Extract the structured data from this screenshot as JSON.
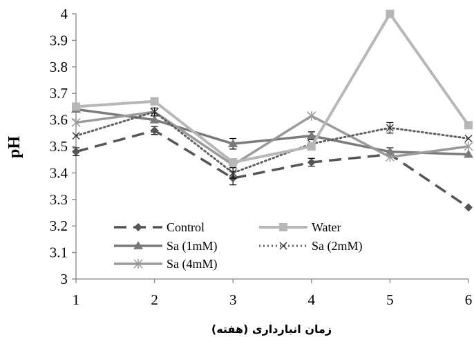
{
  "chart_data": {
    "type": "line",
    "xlabel": "زمان انبارداری (هفته)",
    "ylabel": "pH",
    "x": [
      1,
      2,
      3,
      4,
      5,
      6
    ],
    "ylim": [
      3,
      4
    ],
    "yticks": [
      "3",
      "3.1",
      "3.2",
      "3.3",
      "3.4",
      "3.5",
      "3.6",
      "3.7",
      "3.8",
      "3.9",
      "4"
    ],
    "xticks": [
      "1",
      "2",
      "3",
      "4",
      "5",
      "6"
    ],
    "grid": false,
    "legend_position": "bottom-left inside",
    "series": [
      {
        "name": "Control",
        "values": [
          3.48,
          3.56,
          3.38,
          3.44,
          3.47,
          3.27
        ],
        "errors": [
          0.015,
          0.015,
          0.025,
          0.015,
          0,
          0
        ],
        "color": "#555555",
        "dash": "18,10",
        "marker": "diamond",
        "width": 3.5
      },
      {
        "name": "Water",
        "values": [
          3.65,
          3.67,
          3.44,
          3.5,
          4.0,
          3.58
        ],
        "errors": [
          0,
          0,
          0,
          0,
          0,
          0
        ],
        "color": "#b7b7b7",
        "dash": "",
        "marker": "square",
        "width": 4
      },
      {
        "name": "Sa (1mM)",
        "values": [
          3.64,
          3.6,
          3.51,
          3.54,
          3.48,
          3.47
        ],
        "errors": [
          0,
          0,
          0.02,
          0.015,
          0.015,
          0
        ],
        "color": "#7a7a7a",
        "dash": "",
        "marker": "triangle",
        "width": 3.5
      },
      {
        "name": "Sa (2mM)",
        "values": [
          3.54,
          3.63,
          3.4,
          3.51,
          3.57,
          3.53
        ],
        "errors": [
          0,
          0.015,
          0.02,
          0,
          0.02,
          0
        ],
        "color": "#606060",
        "dash": "2,4",
        "marker": "x",
        "width": 3
      },
      {
        "name": "Sa (4mM)",
        "values": [
          3.59,
          3.63,
          3.43,
          3.615,
          3.46,
          3.5
        ],
        "errors": [
          0,
          0,
          0,
          0,
          0,
          0
        ],
        "color": "#9a9a9a",
        "dash": "",
        "marker": "star",
        "width": 3.5
      }
    ]
  }
}
